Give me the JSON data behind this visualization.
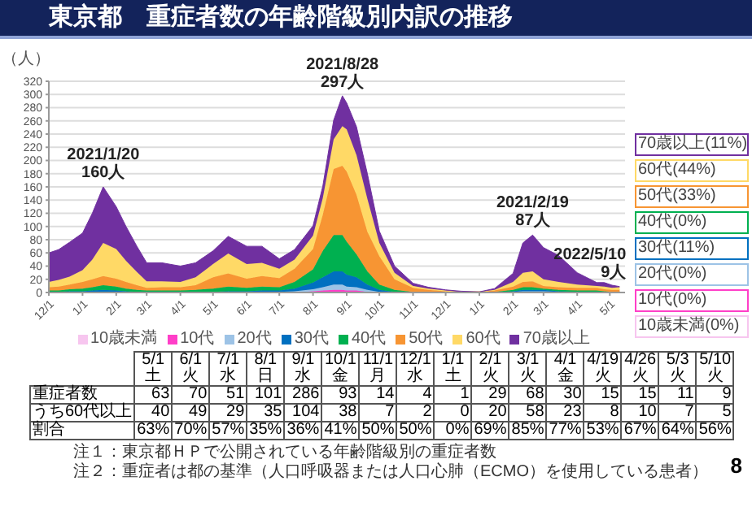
{
  "chart_data": [
    {
      "type": "area",
      "title": "東京都　重症者数の年齢階級別内訳の推移",
      "ylabel": "（人）",
      "stacked": true,
      "grid": "y",
      "legend": "bottom",
      "x": [
        "2020-12-01",
        "2020-12-10",
        "2020-12-20",
        "2021-01-01",
        "2021-01-10",
        "2021-01-20",
        "2021-02-01",
        "2021-02-10",
        "2021-02-20",
        "2021-03-01",
        "2021-03-15",
        "2021-04-01",
        "2021-04-15",
        "2021-05-01",
        "2021-05-15",
        "2021-06-01",
        "2021-06-15",
        "2021-07-01",
        "2021-07-15",
        "2021-08-01",
        "2021-08-10",
        "2021-08-20",
        "2021-08-28",
        "2021-09-01",
        "2021-09-10",
        "2021-09-20",
        "2021-10-01",
        "2021-10-15",
        "2021-11-01",
        "2021-11-15",
        "2021-12-01",
        "2021-12-15",
        "2022-01-01",
        "2022-01-15",
        "2022-02-01",
        "2022-02-10",
        "2022-02-19",
        "2022-03-01",
        "2022-03-15",
        "2022-04-01",
        "2022-04-19",
        "2022-04-26",
        "2022-05-03",
        "2022-05-10"
      ],
      "xlim": [
        "2020-12-01",
        "2022-05-15"
      ],
      "xticks": [
        {
          "value": "2020-12-01",
          "label": "12/1"
        },
        {
          "value": "2021-01-01",
          "label": "1/1"
        },
        {
          "value": "2021-02-01",
          "label": "2/1"
        },
        {
          "value": "2021-03-01",
          "label": "3/1"
        },
        {
          "value": "2021-04-01",
          "label": "4/1"
        },
        {
          "value": "2021-05-01",
          "label": "5/1"
        },
        {
          "value": "2021-06-01",
          "label": "6/1"
        },
        {
          "value": "2021-07-01",
          "label": "7/1"
        },
        {
          "value": "2021-08-01",
          "label": "8/1"
        },
        {
          "value": "2021-09-01",
          "label": "9/1"
        },
        {
          "value": "2021-10-01",
          "label": "10/1"
        },
        {
          "value": "2021-11-01",
          "label": "11/1"
        },
        {
          "value": "2021-12-01",
          "label": "12/1"
        },
        {
          "value": "2022-01-01",
          "label": "1/1"
        },
        {
          "value": "2022-02-01",
          "label": "2/1"
        },
        {
          "value": "2022-03-01",
          "label": "3/1"
        },
        {
          "value": "2022-04-01",
          "label": "4/1"
        },
        {
          "value": "2022-05-01",
          "label": "5/1"
        }
      ],
      "ylim": [
        0,
        320
      ],
      "yticks": [
        0,
        20,
        40,
        60,
        80,
        100,
        120,
        140,
        160,
        180,
        200,
        220,
        240,
        260,
        280,
        300,
        320
      ],
      "series": [
        {
          "name": "10歳未満",
          "color": "#f7c6ef",
          "values": [
            0,
            0,
            0,
            0,
            0,
            0,
            0,
            0,
            0,
            0,
            0,
            0,
            0,
            0,
            0,
            0,
            0,
            0,
            0,
            1,
            1,
            1,
            1,
            1,
            1,
            0,
            0,
            0,
            0,
            0,
            0,
            0,
            0,
            0,
            0,
            1,
            1,
            1,
            0,
            0,
            0,
            0,
            0,
            0
          ]
        },
        {
          "name": "10代",
          "color": "#ff3fc8",
          "values": [
            0,
            0,
            0,
            0,
            0,
            0,
            0,
            0,
            0,
            0,
            0,
            0,
            0,
            0,
            0,
            0,
            0,
            0,
            0,
            1,
            2,
            3,
            3,
            2,
            2,
            1,
            0,
            0,
            0,
            0,
            0,
            0,
            0,
            0,
            0,
            0,
            0,
            0,
            0,
            0,
            0,
            0,
            0,
            0
          ]
        },
        {
          "name": "20代",
          "color": "#9dc3e6",
          "values": [
            0,
            0,
            0,
            0,
            1,
            1,
            1,
            0,
            0,
            0,
            0,
            0,
            0,
            0,
            1,
            1,
            1,
            1,
            2,
            3,
            5,
            8,
            8,
            6,
            5,
            3,
            1,
            0,
            0,
            0,
            0,
            0,
            0,
            0,
            1,
            1,
            1,
            1,
            1,
            0,
            0,
            0,
            0,
            0
          ]
        },
        {
          "name": "30代",
          "color": "#0070c0",
          "values": [
            1,
            1,
            2,
            2,
            2,
            3,
            2,
            2,
            1,
            1,
            1,
            1,
            1,
            1,
            1,
            1,
            2,
            2,
            4,
            10,
            15,
            20,
            20,
            18,
            15,
            8,
            3,
            1,
            0,
            0,
            0,
            0,
            0,
            0,
            1,
            2,
            2,
            2,
            1,
            1,
            1,
            1,
            0,
            1
          ]
        },
        {
          "name": "40代",
          "color": "#00b050",
          "values": [
            2,
            2,
            3,
            4,
            5,
            7,
            6,
            4,
            3,
            2,
            2,
            2,
            3,
            5,
            7,
            5,
            6,
            5,
            10,
            20,
            40,
            55,
            55,
            50,
            35,
            20,
            8,
            3,
            1,
            0,
            0,
            0,
            0,
            1,
            2,
            4,
            4,
            2,
            2,
            2,
            2,
            1,
            1,
            0
          ]
        },
        {
          "name": "50代",
          "color": "#f79533",
          "values": [
            5,
            6,
            7,
            10,
            12,
            14,
            12,
            10,
            7,
            4,
            5,
            5,
            7,
            17,
            20,
            14,
            16,
            14,
            20,
            31,
            55,
            100,
            105,
            106,
            90,
            60,
            43,
            16,
            6,
            4,
            2,
            1,
            1,
            2,
            5,
            8,
            9,
            4,
            4,
            4,
            4,
            3,
            3,
            3
          ]
        },
        {
          "name": "60代",
          "color": "#ffd966",
          "values": [
            8,
            10,
            12,
            18,
            30,
            50,
            45,
            32,
            20,
            10,
            9,
            8,
            12,
            20,
            30,
            22,
            20,
            14,
            14,
            20,
            25,
            45,
            60,
            64,
            60,
            50,
            20,
            10,
            3,
            2,
            1,
            0,
            0,
            1,
            7,
            14,
            15,
            10,
            8,
            5,
            3,
            4,
            3,
            4
          ]
        },
        {
          "name": "70歳以上",
          "color": "#7030a0",
          "values": [
            44,
            46,
            52,
            56,
            70,
            85,
            64,
            52,
            39,
            28,
            28,
            24,
            22,
            20,
            26,
            27,
            25,
            15,
            15,
            15,
            18,
            29,
            46,
            40,
            43,
            38,
            18,
            10,
            4,
            2,
            1,
            1,
            0,
            2,
            13,
            45,
            55,
            48,
            40,
            18,
            5,
            6,
            4,
            1
          ]
        }
      ],
      "annotations": [
        {
          "text": "2021/1/20\n160人",
          "x": "2021-01-20",
          "y": 160
        },
        {
          "text": "2021/8/28\n297人",
          "x": "2021-08-28",
          "y": 297
        },
        {
          "text": "2021/2/19\n87人",
          "x": "2022-02-19",
          "y": 87
        },
        {
          "text": "2022/5/10\n9人",
          "x": "2022-05-10",
          "y": 9
        },
        "70歳以上(11%)",
        "60代(44%)",
        "50代(33%)",
        "40代(0%)",
        "30代(11%)",
        "20代(0%)",
        "10代(0%)",
        "10歳未満(0%)",
        "注１：東京都ＨＰで公開されている年齢階級別の重症者数",
        "注２：重症者は都の基準（人口呼吸器または人口心肺（ECMO）を使用している患者）",
        "8"
      ]
    },
    {
      "type": "other",
      "data_labels": true,
      "categories": [
        "5/1土",
        "6/1火",
        "7/1水",
        "8/1日",
        "9/1水",
        "10/1金",
        "11/1月",
        "12/1水",
        "1/1土",
        "2/1火",
        "3/1火",
        "4/1金",
        "4/19火",
        "4/26火",
        "5/3火",
        "5/10火"
      ],
      "series": [
        {
          "name": "重症者数",
          "values": [
            63,
            70,
            51,
            101,
            286,
            93,
            14,
            4,
            1,
            29,
            68,
            30,
            15,
            15,
            11,
            9
          ]
        },
        {
          "name": "うち60代以上",
          "values": [
            40,
            49,
            29,
            35,
            104,
            38,
            7,
            2,
            0,
            20,
            58,
            23,
            8,
            10,
            7,
            5
          ]
        },
        {
          "name": "割合",
          "values": [
            63,
            70,
            57,
            35,
            36,
            41,
            50,
            50,
            0,
            69,
            85,
            77,
            53,
            67,
            64,
            56
          ],
          "value_labels": [
            "63%",
            "70%",
            "57%",
            "35%",
            "36%",
            "41%",
            "50%",
            "50%",
            "0%",
            "69%",
            "85%",
            "77%",
            "53%",
            "67%",
            "64%",
            "56%"
          ]
        }
      ]
    }
  ]
}
